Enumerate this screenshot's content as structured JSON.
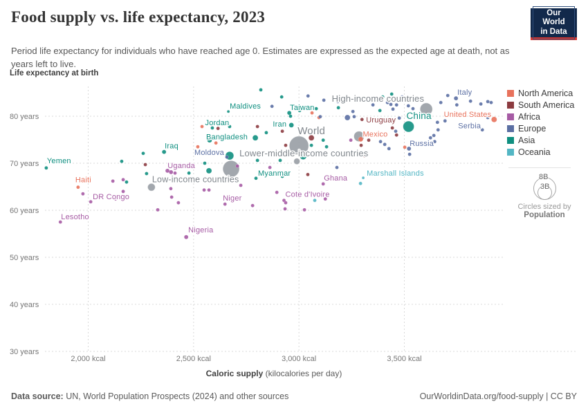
{
  "header": {
    "title": "Food supply vs. life expectancy, 2023",
    "subtitle": "Period life expectancy for individuals who have reached age 0. Estimates are expressed as the expected age at death, not as years left to live.",
    "logo": {
      "line1": "Our World",
      "line2": "in Data"
    }
  },
  "chart": {
    "y_axis_title": "Life expectancy at birth",
    "x_axis_title_bold": "Caloric supply",
    "x_axis_title_rest": " (kilocalories per day)",
    "x_ticks": [
      {
        "value": 2000,
        "label": "2,000 kcal"
      },
      {
        "value": 2500,
        "label": "2,500 kcal"
      },
      {
        "value": 3000,
        "label": "3,000 kcal"
      },
      {
        "value": 3500,
        "label": "3,500 kcal"
      }
    ],
    "y_ticks": [
      {
        "value": 80,
        "label": "80 years"
      },
      {
        "value": 70,
        "label": "70 years"
      },
      {
        "value": 60,
        "label": "60 years"
      },
      {
        "value": 50,
        "label": "50 years"
      },
      {
        "value": 40,
        "label": "40 years"
      },
      {
        "value": 30,
        "label": "30 years"
      }
    ],
    "colors": {
      "NA": "#e8725c",
      "SA": "#8c3b40",
      "AF": "#a65ba4",
      "EU": "#5b6fa3",
      "AS": "#0f8f80",
      "OC": "#53b6c4",
      "AGG": "#9aa0a6"
    },
    "aggregate_label_color": "#81878d",
    "gridline_color": "#d9d9d9",
    "tick_label_color": "#757575"
  },
  "chart_data": {
    "type": "scatter",
    "title": "Food supply vs. life expectancy, 2023",
    "xlabel": "Caloric supply (kilocalories per day)",
    "ylabel": "Life expectancy at birth",
    "xlim": [
      1790,
      3980
    ],
    "ylim": [
      29,
      86
    ],
    "grid": true,
    "size_encoding": "population",
    "points": [
      {
        "name": "World",
        "continent": "AGG",
        "kcal": 3000,
        "life": 73.7,
        "r": 14,
        "lp": [
          18,
          -17
        ],
        "la": "middle",
        "ls": 15
      },
      {
        "name": "Lower-middle-income countries",
        "continent": "AGG",
        "kcal": 2678,
        "life": 68.8,
        "r": 12,
        "lp": [
          12,
          -18
        ],
        "la": "start",
        "ls": 13
      },
      {
        "name": "High-income countries",
        "continent": "AGG",
        "kcal": 3604,
        "life": 81.5,
        "r": 9,
        "lp": [
          -3,
          -11
        ],
        "la": "end",
        "ls": 13
      },
      {
        "name": "Low-income countries",
        "continent": "AGG",
        "kcal": 2300,
        "life": 64.9,
        "r": 5.5,
        "lp": [
          1,
          -7
        ],
        "la": "start",
        "ls": 12.5
      },
      {
        "continent": "AGG",
        "kcal": 3285,
        "life": 75.7,
        "r": 7.5
      },
      {
        "continent": "AGG",
        "kcal": 2990,
        "life": 70.4,
        "r": 4.5
      },
      {
        "continent": "AS",
        "kcal": 2671,
        "life": 71.6,
        "r": 6
      },
      {
        "name": "China",
        "continent": "AS",
        "kcal": 3520,
        "life": 77.8,
        "r": 8,
        "lp": [
          15,
          -11
        ],
        "la": "middle",
        "ls": 13.5
      },
      {
        "name": "Yemen",
        "continent": "AS",
        "kcal": 1801,
        "life": 69.0,
        "r": 2.5,
        "lp": [
          1,
          -7
        ],
        "la": "start"
      },
      {
        "name": "Haiti",
        "continent": "NA",
        "kcal": 1952,
        "life": 64.9,
        "r": 2.5,
        "lp": [
          -4,
          -7
        ],
        "la": "start"
      },
      {
        "name": "DR Congo",
        "continent": "AF",
        "kcal": 2012,
        "life": 61.8,
        "r": 2.5,
        "lp": [
          3,
          -4
        ],
        "la": "start"
      },
      {
        "name": "Lesotho",
        "continent": "AF",
        "kcal": 1868,
        "life": 57.5,
        "r": 2.5,
        "lp": [
          1,
          -4
        ],
        "la": "start"
      },
      {
        "name": "Iraq",
        "continent": "AS",
        "kcal": 2360,
        "life": 72.4,
        "r": 3,
        "lp": [
          1,
          -5
        ],
        "la": "start"
      },
      {
        "name": "Uganda",
        "continent": "AF",
        "kcal": 2393,
        "life": 68.1,
        "r": 3,
        "lp": [
          -5,
          -6
        ],
        "la": "start"
      },
      {
        "name": "Nigeria",
        "continent": "AF",
        "kcal": 2465,
        "life": 54.3,
        "r": 3,
        "lp": [
          3,
          -7
        ],
        "la": "start"
      },
      {
        "name": "Niger",
        "continent": "AF",
        "kcal": 2649,
        "life": 61.3,
        "r": 2.5,
        "lp": [
          -3,
          -5
        ],
        "la": "start"
      },
      {
        "name": "Cote d'Ivoire",
        "continent": "AF",
        "kcal": 2929,
        "life": 62.1,
        "r": 2.5,
        "lp": [
          2,
          -5
        ],
        "la": "start"
      },
      {
        "name": "Ghana",
        "continent": "AF",
        "kcal": 3115,
        "life": 65.6,
        "r": 2.5,
        "lp": [
          1,
          -5
        ],
        "la": "start"
      },
      {
        "name": "Myanmar",
        "continent": "AS",
        "kcal": 2796,
        "life": 66.8,
        "r": 2.5,
        "lp": [
          3,
          -4
        ],
        "la": "start"
      },
      {
        "name": "Marshall Islands",
        "continent": "OC",
        "kcal": 3305,
        "life": 66.9,
        "r": 2,
        "lp": [
          5,
          -3
        ],
        "la": "start"
      },
      {
        "name": "Moldova",
        "continent": "EU",
        "kcal": 2658,
        "life": 71.3,
        "r": 2.5,
        "lp": [
          -4,
          -3
        ],
        "la": "end"
      },
      {
        "name": "Bangladesh",
        "continent": "AS",
        "kcal": 2793,
        "life": 75.4,
        "r": 4,
        "lp": [
          -11,
          2
        ],
        "la": "end"
      },
      {
        "name": "Jordan",
        "continent": "AS",
        "kcal": 2589,
        "life": 77.5,
        "r": 2.5,
        "lp": [
          7,
          -4
        ],
        "la": "middle"
      },
      {
        "name": "Maldives",
        "continent": "AS",
        "kcal": 2665,
        "life": 81.0,
        "r": 2,
        "lp": [
          2,
          -4
        ],
        "la": "start"
      },
      {
        "name": "Taiwan",
        "continent": "AS",
        "kcal": 2954,
        "life": 80.7,
        "r": 3,
        "lp": [
          1,
          -4
        ],
        "la": "start"
      },
      {
        "name": "Iran",
        "continent": "AS",
        "kcal": 2964,
        "life": 78.1,
        "r": 3.5,
        "lp": [
          -7,
          2
        ],
        "la": "end"
      },
      {
        "name": "Mexico",
        "continent": "NA",
        "kcal": 3293,
        "life": 75.1,
        "r": 3.5,
        "lp": [
          3,
          -4
        ],
        "la": "start"
      },
      {
        "name": "Uruguay",
        "continent": "SA",
        "kcal": 3299,
        "life": 79.3,
        "r": 2.5,
        "lp": [
          6,
          4
        ],
        "la": "start"
      },
      {
        "name": "Russia",
        "continent": "EU",
        "kcal": 3522,
        "life": 73.1,
        "r": 3,
        "lp": [
          1,
          -4
        ],
        "la": "start"
      },
      {
        "name": "United States",
        "continent": "NA",
        "kcal": 3926,
        "life": 79.3,
        "r": 4,
        "lp": [
          -4,
          -4
        ],
        "la": "end"
      },
      {
        "name": "Italy",
        "continent": "EU",
        "kcal": 3745,
        "life": 83.8,
        "r": 3,
        "lp": [
          2,
          -5
        ],
        "la": "start"
      },
      {
        "name": "Serbia",
        "continent": "EU",
        "kcal": 3870,
        "life": 77.1,
        "r": 2.5,
        "lp": [
          -2,
          -2
        ],
        "la": "end"
      },
      {
        "continent": "AS",
        "kcal": 2819,
        "life": 85.6
      },
      {
        "continent": "AS",
        "kcal": 2918,
        "life": 84.1
      },
      {
        "continent": "EU",
        "kcal": 2872,
        "life": 82.1
      },
      {
        "continent": "AS",
        "kcal": 3082,
        "life": 81.6
      },
      {
        "continent": "AS",
        "kcal": 3003,
        "life": 81.2
      },
      {
        "continent": "EU",
        "kcal": 3043,
        "life": 84.3
      },
      {
        "continent": "EU",
        "kcal": 3118,
        "life": 83.4
      },
      {
        "continent": "EU",
        "kcal": 3184,
        "life": 83.1
      },
      {
        "continent": "AS",
        "kcal": 3187,
        "life": 81.8
      },
      {
        "continent": "EU",
        "kcal": 3256,
        "life": 81.0
      },
      {
        "continent": "EU",
        "kcal": 3351,
        "life": 82.4
      },
      {
        "continent": "AS",
        "kcal": 3397,
        "life": 84.1
      },
      {
        "continent": "EU",
        "kcal": 3436,
        "life": 82.5
      },
      {
        "continent": "EU",
        "kcal": 3489,
        "life": 84.1
      },
      {
        "continent": "AS",
        "kcal": 3384,
        "life": 81.2
      },
      {
        "continent": "EU",
        "kcal": 3519,
        "life": 82.2
      },
      {
        "continent": "AS",
        "kcal": 3440,
        "life": 84.7
      },
      {
        "continent": "EU",
        "kcal": 3420,
        "life": 82.9
      },
      {
        "continent": "EU",
        "kcal": 3463,
        "life": 82.4
      },
      {
        "continent": "EU",
        "kcal": 3541,
        "life": 81.6
      },
      {
        "continent": "EU",
        "kcal": 3446,
        "life": 81.5
      },
      {
        "continent": "EU",
        "kcal": 3673,
        "life": 82.9
      },
      {
        "continent": "EU",
        "kcal": 3749,
        "life": 82.4
      },
      {
        "continent": "EU",
        "kcal": 3896,
        "life": 83.1
      },
      {
        "continent": "EU",
        "kcal": 3912,
        "life": 82.9
      },
      {
        "continent": "NA",
        "kcal": 3062,
        "life": 80.7
      },
      {
        "continent": "NA",
        "kcal": 3095,
        "life": 79.7
      },
      {
        "continent": "EU",
        "kcal": 3230,
        "life": 79.7,
        "r": 4
      },
      {
        "continent": "EU",
        "kcal": 3262,
        "life": 79.9
      },
      {
        "continent": "EU",
        "kcal": 3706,
        "life": 84.4
      },
      {
        "continent": "EU",
        "kcal": 3814,
        "life": 83.2
      },
      {
        "continent": "EU",
        "kcal": 3863,
        "life": 82.6
      },
      {
        "continent": "EU",
        "kcal": 3896,
        "life": 79.7
      },
      {
        "continent": "EU",
        "kcal": 3693,
        "life": 79.0
      },
      {
        "continent": "EU",
        "kcal": 3657,
        "life": 78.7
      },
      {
        "continent": "EU",
        "kcal": 3660,
        "life": 77.1
      },
      {
        "continent": "EU",
        "kcal": 3640,
        "life": 75.9
      },
      {
        "continent": "EU",
        "kcal": 3644,
        "life": 74.6
      },
      {
        "continent": "EU",
        "kcal": 3624,
        "life": 75.4
      },
      {
        "continent": "NA",
        "kcal": 2540,
        "life": 77.8
      },
      {
        "continent": "SA",
        "kcal": 2616,
        "life": 77.4
      },
      {
        "continent": "AS",
        "kcal": 2671,
        "life": 77.8
      },
      {
        "continent": "AS",
        "kcal": 2576,
        "life": 74.9,
        "r": 3.5
      },
      {
        "continent": "NA",
        "kcal": 2606,
        "life": 74.3
      },
      {
        "continent": "SA",
        "kcal": 2803,
        "life": 77.8
      },
      {
        "continent": "AS",
        "kcal": 2845,
        "life": 76.5
      },
      {
        "continent": "SA",
        "kcal": 2921,
        "life": 76.8
      },
      {
        "continent": "NA",
        "kcal": 2520,
        "life": 73.5
      },
      {
        "continent": "AS",
        "kcal": 2960,
        "life": 80.0
      },
      {
        "continent": "EU",
        "kcal": 3101,
        "life": 79.9
      },
      {
        "continent": "SA",
        "kcal": 3059,
        "life": 75.4,
        "r": 4
      },
      {
        "continent": "AS",
        "kcal": 3059,
        "life": 73.8
      },
      {
        "continent": "AS",
        "kcal": 3115,
        "life": 74.9
      },
      {
        "continent": "AS",
        "kcal": 3131,
        "life": 73.5
      },
      {
        "continent": "SA",
        "kcal": 2937,
        "life": 73.8
      },
      {
        "continent": "AF",
        "kcal": 3246,
        "life": 74.9
      },
      {
        "continent": "SA",
        "kcal": 3443,
        "life": 77.5
      },
      {
        "continent": "EU",
        "kcal": 3476,
        "life": 79.6
      },
      {
        "continent": "EU",
        "kcal": 3459,
        "life": 76.8
      },
      {
        "continent": "EU",
        "kcal": 3387,
        "life": 74.6
      },
      {
        "continent": "EU",
        "kcal": 3407,
        "life": 74.0
      },
      {
        "continent": "EU",
        "kcal": 3427,
        "life": 73.1
      },
      {
        "continent": "SA",
        "kcal": 3463,
        "life": 76.0
      },
      {
        "continent": "SA",
        "kcal": 3331,
        "life": 74.9
      },
      {
        "continent": "SA",
        "kcal": 3295,
        "life": 73.8
      },
      {
        "continent": "NA",
        "kcal": 3502,
        "life": 73.4
      },
      {
        "continent": "AS",
        "kcal": 2261,
        "life": 72.1
      },
      {
        "continent": "AS",
        "kcal": 2159,
        "life": 70.4
      },
      {
        "continent": "SA",
        "kcal": 2271,
        "life": 69.7
      },
      {
        "continent": "AS",
        "kcal": 2277,
        "life": 67.8
      },
      {
        "continent": "AF",
        "kcal": 2166,
        "life": 66.5
      },
      {
        "continent": "AS",
        "kcal": 2182,
        "life": 66.0
      },
      {
        "continent": "AS",
        "kcal": 2553,
        "life": 70.0
      },
      {
        "continent": "AF",
        "kcal": 2708,
        "life": 69.4
      },
      {
        "continent": "AF",
        "kcal": 2862,
        "life": 69.1
      },
      {
        "continent": "AF",
        "kcal": 2895,
        "life": 67.6
      },
      {
        "continent": "AS",
        "kcal": 2911,
        "life": 70.6
      },
      {
        "continent": "AS",
        "kcal": 2803,
        "life": 70.6
      },
      {
        "continent": "SA",
        "kcal": 3312,
        "life": 71.6
      },
      {
        "continent": "EU",
        "kcal": 3180,
        "life": 69.1
      },
      {
        "continent": "AS",
        "kcal": 2921,
        "life": 67.2
      },
      {
        "continent": "OC",
        "kcal": 3292,
        "life": 65.7
      },
      {
        "continent": "AS",
        "kcal": 3020,
        "life": 71.5,
        "r": 5
      },
      {
        "continent": "SA",
        "kcal": 3042,
        "life": 67.6
      },
      {
        "continent": "AS",
        "kcal": 2573,
        "life": 68.4,
        "r": 4
      },
      {
        "continent": "AF",
        "kcal": 2642,
        "life": 66.2
      },
      {
        "continent": "AF",
        "kcal": 2724,
        "life": 65.3
      },
      {
        "continent": "EU",
        "kcal": 3525,
        "life": 71.9
      },
      {
        "continent": "AF",
        "kcal": 2376,
        "life": 68.4,
        "r": 3
      },
      {
        "continent": "AF",
        "kcal": 2412,
        "life": 67.9
      },
      {
        "continent": "AS",
        "kcal": 2478,
        "life": 67.9
      },
      {
        "continent": "AF",
        "kcal": 2392,
        "life": 64.6
      },
      {
        "continent": "AF",
        "kcal": 2117,
        "life": 66.2
      },
      {
        "continent": "AF",
        "kcal": 1975,
        "life": 63.5
      },
      {
        "continent": "AF",
        "kcal": 2130,
        "life": 62.4
      },
      {
        "continent": "AF",
        "kcal": 2166,
        "life": 64.0
      },
      {
        "continent": "AF",
        "kcal": 2550,
        "life": 64.3
      },
      {
        "continent": "AF",
        "kcal": 2573,
        "life": 64.3
      },
      {
        "continent": "AF",
        "kcal": 2428,
        "life": 61.6
      },
      {
        "continent": "AF",
        "kcal": 2396,
        "life": 62.8
      },
      {
        "continent": "AF",
        "kcal": 2780,
        "life": 61.0
      },
      {
        "continent": "AF",
        "kcal": 2895,
        "life": 63.8
      },
      {
        "continent": "AF",
        "kcal": 2937,
        "life": 61.6
      },
      {
        "continent": "AF",
        "kcal": 2934,
        "life": 60.3
      },
      {
        "continent": "OC",
        "kcal": 3075,
        "life": 62.1
      },
      {
        "continent": "AF",
        "kcal": 3125,
        "life": 62.4
      },
      {
        "continent": "AF",
        "kcal": 3026,
        "life": 60.1
      },
      {
        "continent": "AF",
        "kcal": 2330,
        "life": 60.1
      }
    ]
  },
  "legend": {
    "continents": [
      {
        "name": "North America",
        "key": "NA"
      },
      {
        "name": "South America",
        "key": "SA"
      },
      {
        "name": "Africa",
        "key": "AF"
      },
      {
        "name": "Europe",
        "key": "EU"
      },
      {
        "name": "Asia",
        "key": "AS"
      },
      {
        "name": "Oceania",
        "key": "OC"
      }
    ],
    "size": {
      "big": "8B",
      "small": "3B",
      "caption_line1": "Circles sized by",
      "caption_line2": "Population"
    }
  },
  "footer": {
    "source_label": "Data source:",
    "source_text": " UN, World Population Prospects (2024) and other sources",
    "right_text": "OurWorldinData.org/food-supply | CC BY"
  }
}
